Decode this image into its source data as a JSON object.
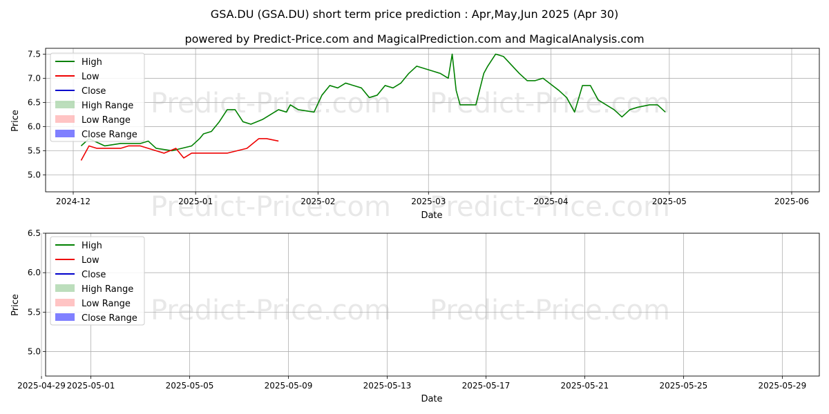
{
  "title": "GSA.DU (GSA.DU) short term price prediction : Apr,May,Jun 2025 (Apr 30)",
  "subtitle": "powered by Predict-Price.com and MagicalPrediction.com and MagicalAnalysis.com",
  "watermark": "Predict-Price.com",
  "colors": {
    "high": "#008000",
    "low": "#ee0000",
    "close": "#0000cc",
    "high_range": "#90c890",
    "low_range": "#ff9c9c",
    "close_range": "#6a6aff"
  },
  "chart_data": [
    {
      "type": "line",
      "xlabel": "Date",
      "ylabel": "Price",
      "xlim": [
        "2024-11-24",
        "2025-06-08"
      ],
      "ylim": [
        4.65,
        7.62
      ],
      "x_ticks": [
        "2024-12",
        "2025-01",
        "2025-02",
        "2025-03",
        "2025-04",
        "2025-05",
        "2025-06"
      ],
      "x_tick_dates": [
        "2024-12-01",
        "2025-01-01",
        "2025-02-01",
        "2025-03-01",
        "2025-04-01",
        "2025-05-01",
        "2025-06-01"
      ],
      "y_ticks": [
        "5.0",
        "5.5",
        "6.0",
        "6.5",
        "7.0",
        "7.5"
      ],
      "grid": true,
      "legend": "top-left",
      "legend_entries": [
        "High",
        "Low",
        "Close",
        "High Range",
        "Low Range",
        "Close Range"
      ],
      "series": [
        {
          "name": "High",
          "points": [
            [
              "2024-12-03",
              5.6
            ],
            [
              "2024-12-05",
              5.75
            ],
            [
              "2024-12-09",
              5.6
            ],
            [
              "2024-12-13",
              5.65
            ],
            [
              "2024-12-18",
              5.65
            ],
            [
              "2024-12-20",
              5.7
            ],
            [
              "2024-12-22",
              5.55
            ],
            [
              "2024-12-26",
              5.5
            ],
            [
              "2024-12-31",
              5.6
            ],
            [
              "2025-01-02",
              5.75
            ],
            [
              "2025-01-03",
              5.85
            ],
            [
              "2025-01-05",
              5.9
            ],
            [
              "2025-01-07",
              6.1
            ],
            [
              "2025-01-09",
              6.35
            ],
            [
              "2025-01-11",
              6.35
            ],
            [
              "2025-01-13",
              6.1
            ],
            [
              "2025-01-15",
              6.05
            ],
            [
              "2025-01-18",
              6.15
            ],
            [
              "2025-01-22",
              6.35
            ],
            [
              "2025-01-24",
              6.3
            ],
            [
              "2025-01-25",
              6.45
            ],
            [
              "2025-01-27",
              6.35
            ],
            [
              "2025-01-31",
              6.3
            ],
            [
              "2025-02-02",
              6.65
            ],
            [
              "2025-02-04",
              6.85
            ],
            [
              "2025-02-06",
              6.8
            ],
            [
              "2025-02-08",
              6.9
            ],
            [
              "2025-02-12",
              6.8
            ],
            [
              "2025-02-14",
              6.6
            ],
            [
              "2025-02-16",
              6.65
            ],
            [
              "2025-02-18",
              6.85
            ],
            [
              "2025-02-20",
              6.8
            ],
            [
              "2025-02-22",
              6.9
            ],
            [
              "2025-02-24",
              7.1
            ],
            [
              "2025-02-26",
              7.25
            ],
            [
              "2025-02-28",
              7.2
            ],
            [
              "2025-03-02",
              7.15
            ],
            [
              "2025-03-04",
              7.1
            ],
            [
              "2025-03-06",
              7.0
            ],
            [
              "2025-03-07",
              7.5
            ],
            [
              "2025-03-08",
              6.75
            ],
            [
              "2025-03-09",
              6.45
            ],
            [
              "2025-03-13",
              6.45
            ],
            [
              "2025-03-15",
              7.1
            ],
            [
              "2025-03-16",
              7.25
            ],
            [
              "2025-03-18",
              7.5
            ],
            [
              "2025-03-20",
              7.45
            ],
            [
              "2025-03-24",
              7.1
            ],
            [
              "2025-03-26",
              6.95
            ],
            [
              "2025-03-28",
              6.95
            ],
            [
              "2025-03-30",
              7.0
            ],
            [
              "2025-04-03",
              6.75
            ],
            [
              "2025-04-05",
              6.6
            ],
            [
              "2025-04-07",
              6.3
            ],
            [
              "2025-04-09",
              6.85
            ],
            [
              "2025-04-11",
              6.85
            ],
            [
              "2025-04-13",
              6.55
            ],
            [
              "2025-04-17",
              6.35
            ],
            [
              "2025-04-19",
              6.2
            ],
            [
              "2025-04-21",
              6.35
            ],
            [
              "2025-04-23",
              6.4
            ],
            [
              "2025-04-26",
              6.45
            ],
            [
              "2025-04-28",
              6.45
            ],
            [
              "2025-04-30",
              6.3
            ]
          ]
        },
        {
          "name": "Low",
          "points": [
            [
              "2024-12-03",
              5.3
            ],
            [
              "2024-12-05",
              5.6
            ],
            [
              "2024-12-07",
              5.55
            ],
            [
              "2024-12-13",
              5.55
            ],
            [
              "2024-12-15",
              5.6
            ],
            [
              "2024-12-18",
              5.6
            ],
            [
              "2024-12-20",
              5.55
            ],
            [
              "2024-12-24",
              5.45
            ],
            [
              "2024-12-27",
              5.55
            ],
            [
              "2024-12-29",
              5.35
            ],
            [
              "2024-12-31",
              5.45
            ],
            [
              "2025-01-09",
              5.45
            ],
            [
              "2025-01-14",
              5.55
            ],
            [
              "2025-01-17",
              5.75
            ],
            [
              "2025-01-19",
              5.75
            ],
            [
              "2025-01-22",
              5.7
            ]
          ]
        },
        {
          "name": "Close",
          "points": []
        }
      ]
    },
    {
      "type": "line",
      "xlabel": "Date",
      "ylabel": "Price",
      "xlim": [
        "2025-04-29 04:00",
        "2025-05-30 12:00"
      ],
      "ylim": [
        4.69,
        6.5
      ],
      "x_ticks": [
        "2025-04-29",
        "2025-05-01",
        "2025-05-05",
        "2025-05-09",
        "2025-05-13",
        "2025-05-17",
        "2025-05-21",
        "2025-05-25",
        "2025-05-29"
      ],
      "y_ticks": [
        "5.0",
        "5.5",
        "6.0",
        "6.5"
      ],
      "grid": true,
      "legend": "top-left",
      "legend_entries": [
        "High",
        "Low",
        "Close",
        "High Range",
        "Low Range",
        "Close Range"
      ],
      "series": []
    }
  ]
}
